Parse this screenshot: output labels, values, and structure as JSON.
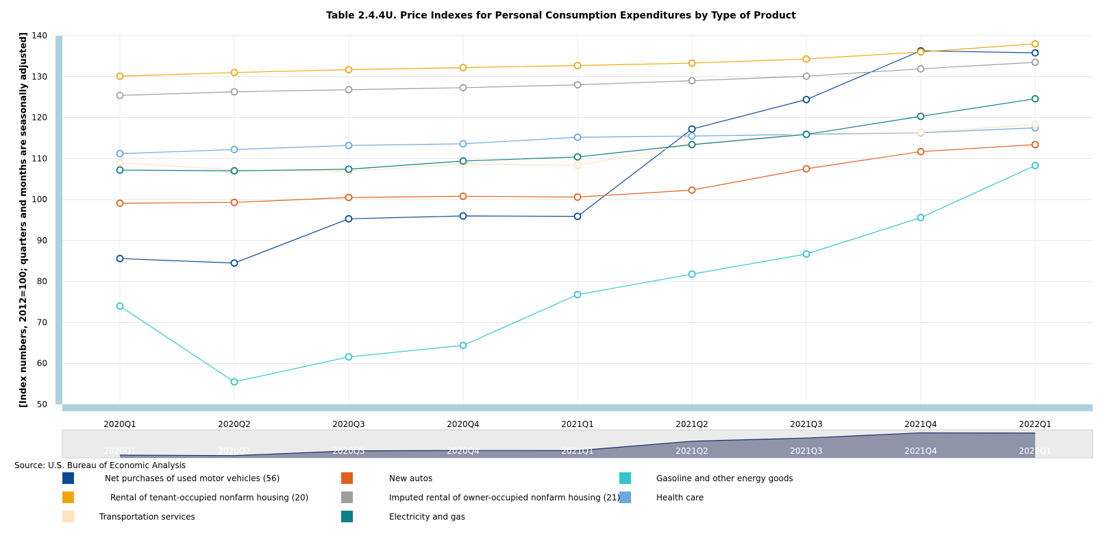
{
  "source": "Source: U.S. Bureau of Economic Analysis",
  "chart_data": {
    "type": "line",
    "title": "Table 2.4.4U. Price Indexes for Personal Consumption Expenditures by Type of Product",
    "xlabel": "",
    "ylabel": "[Index numbers, 2012=100; quarters and months are seasonally adjusted]",
    "ylim": [
      50,
      140
    ],
    "yticks": [
      50,
      60,
      70,
      80,
      90,
      100,
      110,
      120,
      130,
      140
    ],
    "grid": true,
    "legend_position": "bottom",
    "categories": [
      "2020Q1",
      "2020Q2",
      "2020Q3",
      "2020Q4",
      "2021Q1",
      "2021Q2",
      "2021Q3",
      "2021Q4",
      "2022Q1"
    ],
    "series": [
      {
        "name": "Net purchases of used motor vehicles (56)",
        "color": "#0a4a94",
        "values": [
          85.6,
          84.5,
          95.3,
          96.0,
          95.9,
          117.2,
          124.4,
          136.3,
          135.8
        ]
      },
      {
        "name": "New autos",
        "color": "#e0601b",
        "values": [
          99.1,
          99.3,
          100.5,
          100.8,
          100.6,
          102.3,
          107.5,
          111.7,
          113.4
        ]
      },
      {
        "name": "Gasoline and other energy goods",
        "color": "#2ec6cc",
        "values": [
          74.0,
          55.5,
          61.6,
          64.4,
          76.8,
          81.8,
          86.7,
          95.6,
          108.3
        ]
      },
      {
        "name": "Rental of tenant-occupied nonfarm housing (20)",
        "color": "#f5a50c",
        "values": [
          130.1,
          131.0,
          131.7,
          132.2,
          132.7,
          133.3,
          134.3,
          136.0,
          138.0
        ]
      },
      {
        "name": "Imputed rental of owner-occupied nonfarm housing (21)",
        "color": "#9e9e9e",
        "values": [
          125.4,
          126.3,
          126.8,
          127.3,
          128.0,
          129.0,
          130.1,
          131.9,
          133.5
        ]
      },
      {
        "name": "Health care",
        "color": "#6aa8e0",
        "values": [
          111.2,
          112.2,
          113.2,
          113.6,
          115.2,
          115.5,
          115.9,
          116.3,
          117.5
        ]
      },
      {
        "name": "Transportation services",
        "color": "#fde4bf",
        "values": [
          109.0,
          107.2,
          106.9,
          108.7,
          108.3,
          113.5,
          116.1,
          116.4,
          118.3
        ]
      },
      {
        "name": "Electricity and gas",
        "color": "#0f7f88",
        "values": [
          107.2,
          107.0,
          107.4,
          109.4,
          110.4,
          113.4,
          115.9,
          120.3,
          124.6
        ]
      }
    ],
    "navigator": {
      "labels": [
        "2020Q1",
        "2020Q2",
        "2020Q3",
        "2020Q4",
        "2021Q1",
        "2021Q2",
        "2021Q3",
        "2021Q4",
        "2022Q1"
      ],
      "values": [
        85.6,
        84.5,
        95.3,
        96.0,
        95.9,
        117.2,
        124.4,
        136.3,
        135.8
      ]
    }
  }
}
